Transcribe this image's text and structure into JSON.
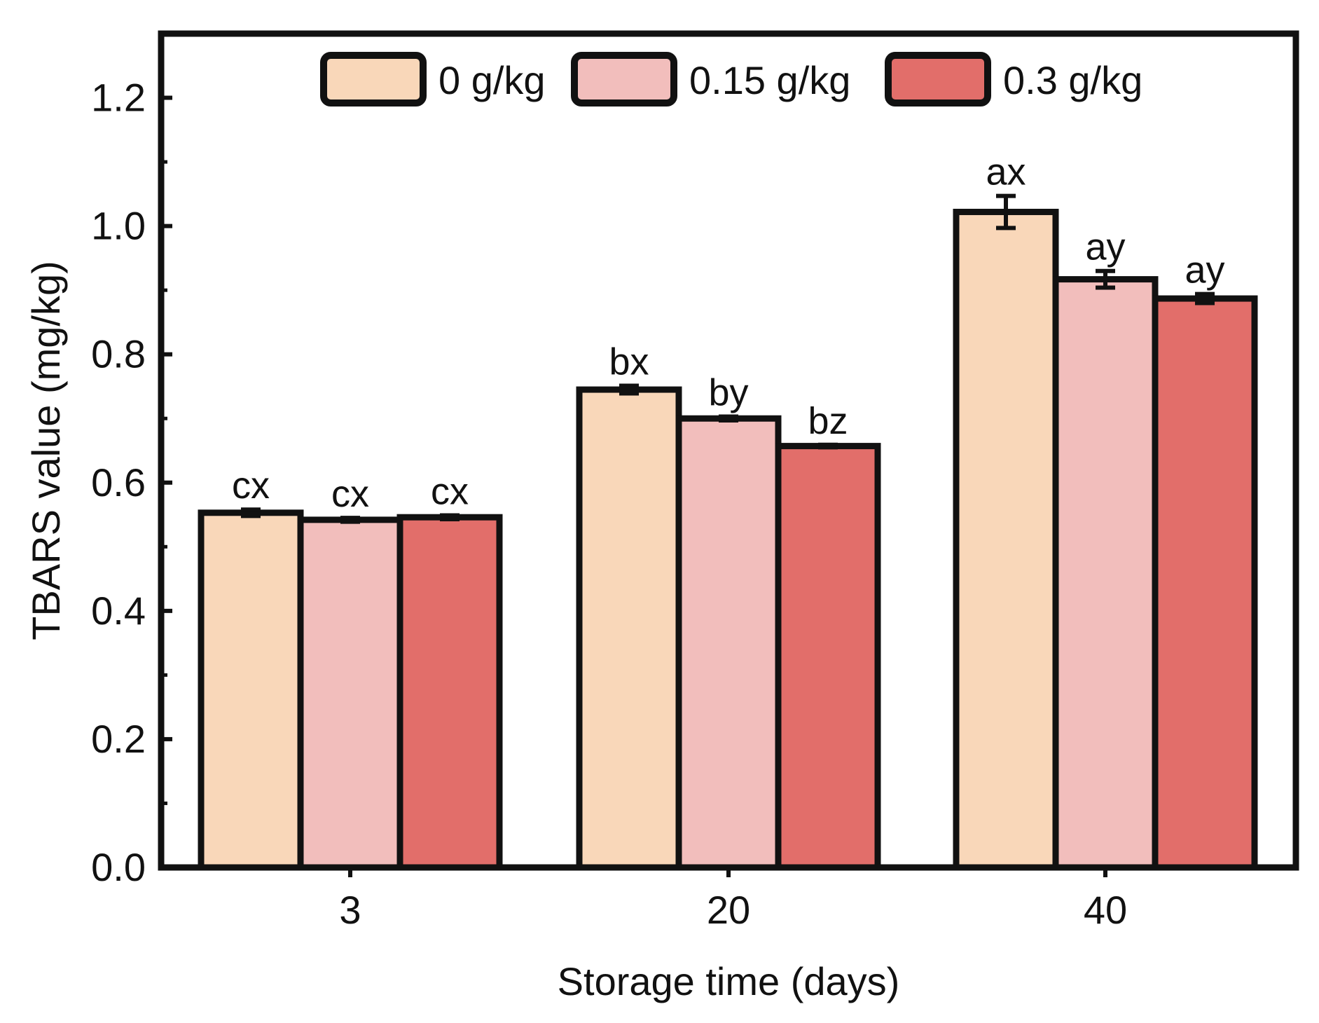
{
  "chart_data": {
    "type": "bar",
    "title": "",
    "xlabel": "Storage time (days)",
    "ylabel": "TBARS value (mg/kg)",
    "ylim": [
      0,
      1.3
    ],
    "yticks": [
      "0.0",
      "0.2",
      "0.4",
      "0.6",
      "0.8",
      "1.0",
      "1.2"
    ],
    "categories": [
      "3",
      "20",
      "40"
    ],
    "legend_position": "top",
    "series": [
      {
        "name": "0 g/kg",
        "color": "#F9D7B9",
        "values": [
          0.553,
          0.745,
          1.022
        ],
        "errors": [
          0.005,
          0.006,
          0.025
        ],
        "labels": [
          "cx",
          "bx",
          "ax"
        ]
      },
      {
        "name": "0.15 g/kg",
        "color": "#F2BEBC",
        "values": [
          0.542,
          0.7,
          0.917
        ],
        "errors": [
          0.003,
          0.003,
          0.013
        ],
        "labels": [
          "cx",
          "by",
          "ay"
        ]
      },
      {
        "name": "0.3 g/kg",
        "color": "#E26E6A",
        "values": [
          0.546,
          0.657,
          0.887
        ],
        "errors": [
          0.003,
          0.002,
          0.007
        ],
        "labels": [
          "cx",
          "bz",
          "ay"
        ]
      }
    ]
  }
}
